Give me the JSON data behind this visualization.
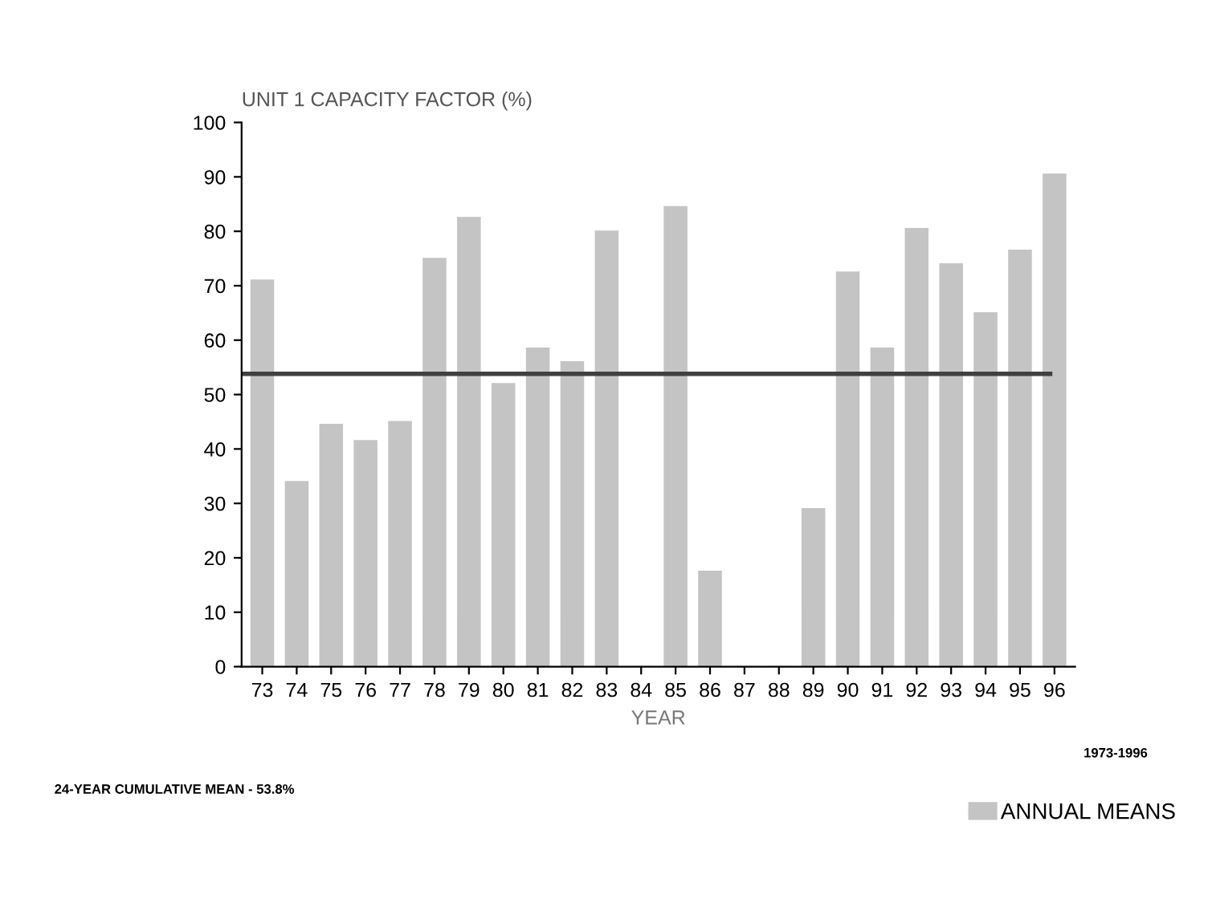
{
  "chart_data": {
    "type": "bar",
    "title": "UNIT 1 CAPACITY FACTOR (%)",
    "xlabel": "YEAR",
    "categories": [
      "73",
      "74",
      "75",
      "76",
      "77",
      "78",
      "79",
      "80",
      "81",
      "82",
      "83",
      "84",
      "85",
      "86",
      "87",
      "88",
      "89",
      "90",
      "91",
      "92",
      "93",
      "94",
      "95",
      "96"
    ],
    "series": [
      {
        "name": "ANNUAL MEANS",
        "color": "#c4c4c4",
        "values": [
          71,
          34,
          44.5,
          41.5,
          45,
          75,
          82.5,
          52,
          58.5,
          56,
          80,
          0,
          84.5,
          17.5,
          0,
          0,
          29,
          72.5,
          58.5,
          80.5,
          74,
          65,
          76.5,
          90.5
        ]
      }
    ],
    "ylim": [
      0,
      100
    ],
    "yticks": [
      0,
      10,
      20,
      30,
      40,
      50,
      60,
      70,
      80,
      90,
      100
    ],
    "ref_lines": [
      {
        "axis": "y",
        "value": 53.8,
        "color": "#404040"
      }
    ],
    "annotations": [
      "24-YEAR CUMULATIVE MEAN - 53.8%",
      "1973-1996"
    ],
    "legend": "bottom right",
    "grid": false
  }
}
